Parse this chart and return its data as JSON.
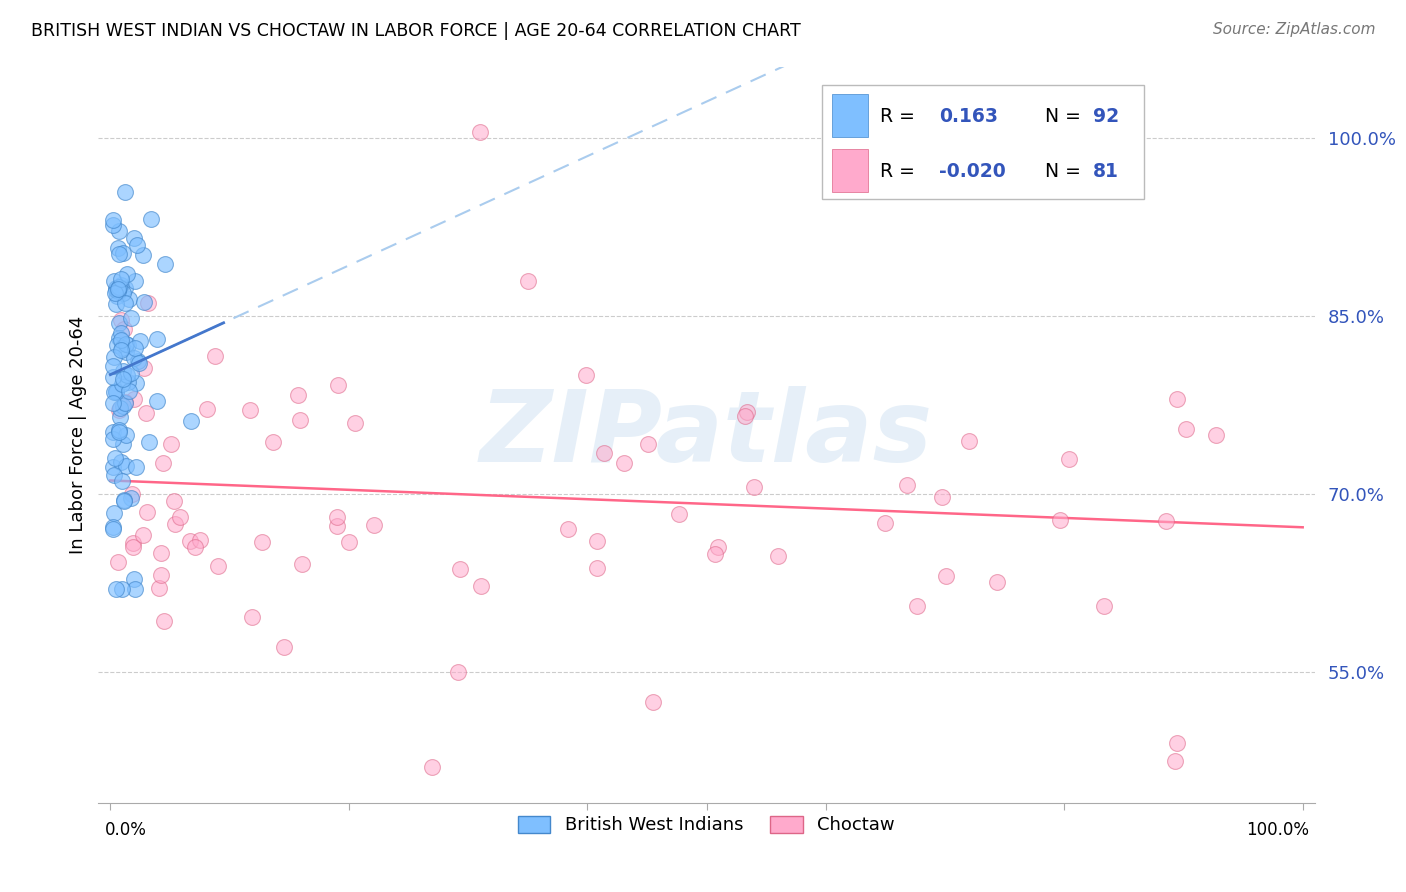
{
  "title": "BRITISH WEST INDIAN VS CHOCTAW IN LABOR FORCE | AGE 20-64 CORRELATION CHART",
  "source": "Source: ZipAtlas.com",
  "ylabel": "In Labor Force | Age 20-64",
  "ytick_labels": [
    "100.0%",
    "85.0%",
    "70.0%",
    "55.0%"
  ],
  "ytick_values": [
    1.0,
    0.85,
    0.7,
    0.55
  ],
  "xlim": [
    -0.01,
    1.01
  ],
  "ylim": [
    0.44,
    1.06
  ],
  "r_blue": 0.163,
  "n_blue": 92,
  "r_pink": -0.02,
  "n_pink": 81,
  "legend_label_blue": "British West Indians",
  "legend_label_pink": "Choctaw",
  "blue_scatter_color": "#7fbfff",
  "blue_edge_color": "#4488cc",
  "pink_scatter_color": "#ffaacc",
  "pink_edge_color": "#dd6688",
  "blue_line_color": "#4477cc",
  "blue_dash_color": "#aaccee",
  "pink_line_color": "#ff6688",
  "grid_color": "#cccccc",
  "watermark_color": "#c8ddf0",
  "watermark_text": "ZIPatlas",
  "right_tick_color": "#3355bb"
}
